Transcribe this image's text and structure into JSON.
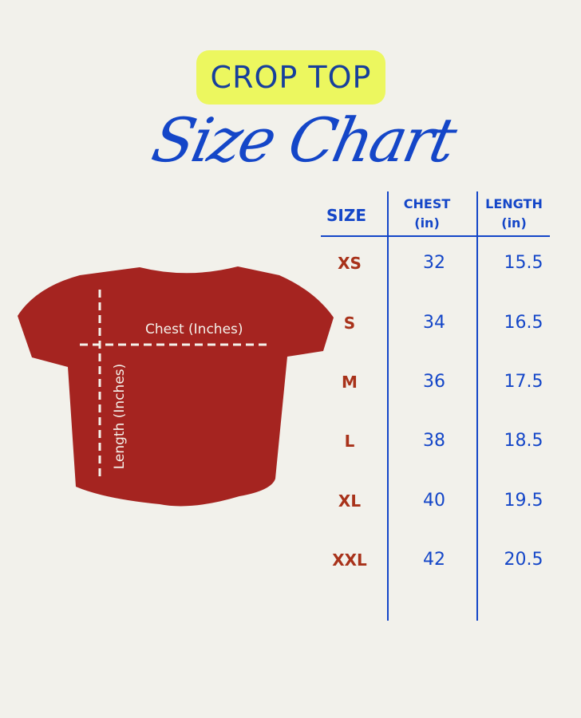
{
  "title": {
    "badge": "CROP TOP",
    "script": "Size Chart"
  },
  "colors": {
    "background": "#f2f1eb",
    "badge": "#ecf75f",
    "blue": "#1446c8",
    "size_red": "#a8321a",
    "shirt_red": "#a52420"
  },
  "shirt": {
    "chest_label": "Chest (Inches)",
    "length_label": "Length (Inches)"
  },
  "table": {
    "headers": {
      "size": "SIZE",
      "chest": "CHEST",
      "chest_unit": "(in)",
      "length": "LENGTH",
      "length_unit": "(in)"
    },
    "rows": [
      {
        "size": "XS",
        "chest": "32",
        "length": "15.5"
      },
      {
        "size": "S",
        "chest": "34",
        "length": "16.5"
      },
      {
        "size": "M",
        "chest": "36",
        "length": "17.5"
      },
      {
        "size": "L",
        "chest": "38",
        "length": "18.5"
      },
      {
        "size": "XL",
        "chest": "40",
        "length": "19.5"
      },
      {
        "size": "XXL",
        "chest": "42",
        "length": "20.5"
      }
    ]
  }
}
